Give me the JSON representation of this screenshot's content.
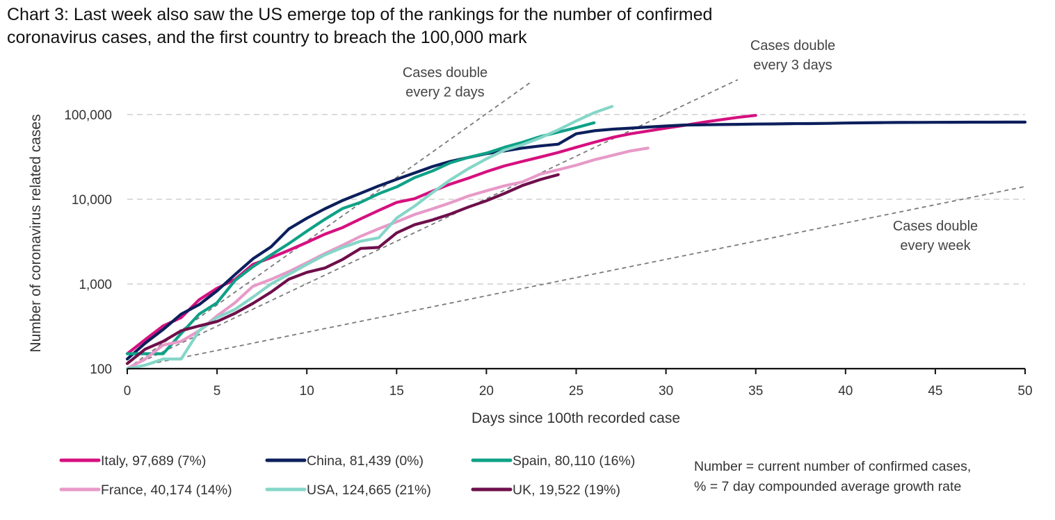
{
  "chart_data": {
    "type": "line",
    "title_lines": [
      "Chart 3: Last week also saw the US emerge top of the rankings for the number of confirmed",
      "coronavirus cases, and the first country to breach the 100,000 mark"
    ],
    "xlabel": "Days since 100th recorded case",
    "ylabel": "Number of coronavirus related cases",
    "y_scale": "log",
    "xlim": [
      0,
      50
    ],
    "ylim": [
      100,
      250000
    ],
    "x_ticks": [
      0,
      5,
      10,
      15,
      20,
      25,
      30,
      35,
      40,
      45,
      50
    ],
    "x_tick_labels": [
      "0",
      "5",
      "10",
      "15",
      "20",
      "25",
      "30",
      "35",
      "40",
      "45",
      "50"
    ],
    "y_ticks": [
      100,
      1000,
      10000,
      100000
    ],
    "y_tick_labels": [
      "100",
      "1,000",
      "10,000",
      "100,000"
    ],
    "grid": "horizontal-dashed",
    "legend_position": "bottom",
    "note_lines": [
      "Number = current number of confirmed cases,",
      "% = 7 day compounded average growth rate"
    ],
    "reference_lines": [
      {
        "doubling_days": 2,
        "label_lines": [
          "Cases double",
          "every 2 days"
        ],
        "x_end": 22.5
      },
      {
        "doubling_days": 3,
        "label_lines": [
          "Cases double",
          "every 3 days"
        ],
        "x_end": 34
      },
      {
        "doubling_days": 7,
        "label_lines": [
          "Cases double",
          "every week"
        ],
        "x_end": 50
      }
    ],
    "series": [
      {
        "name": "Italy, 97,689 (7%)",
        "color": "#d6107f",
        "x": [
          0,
          1,
          2,
          3,
          4,
          5,
          6,
          7,
          8,
          9,
          10,
          11,
          12,
          13,
          14,
          15,
          16,
          17,
          18,
          19,
          20,
          21,
          22,
          23,
          24,
          25,
          26,
          27,
          28,
          29,
          30,
          31,
          32,
          33,
          34,
          35
        ],
        "y": [
          150,
          220,
          320,
          400,
          650,
          890,
          1130,
          1700,
          2040,
          2500,
          3090,
          3860,
          4640,
          5880,
          7380,
          9170,
          10150,
          12460,
          15110,
          17750,
          21160,
          24750,
          27980,
          31510,
          35710,
          41040,
          47020,
          53580,
          59140,
          63930,
          69180,
          74390,
          80590,
          86500,
          92470,
          97689
        ]
      },
      {
        "name": "China, 81,439 (0%)",
        "color": "#0c1f5c",
        "x": [
          0,
          1,
          2,
          3,
          4,
          5,
          6,
          7,
          8,
          9,
          10,
          11,
          12,
          13,
          14,
          15,
          16,
          17,
          18,
          19,
          20,
          21,
          22,
          23,
          24,
          25,
          26,
          27,
          28,
          29,
          30,
          31,
          32,
          33,
          34,
          35,
          36,
          37,
          38,
          39,
          40,
          41,
          42,
          43,
          44,
          45,
          46,
          47,
          48,
          49,
          50
        ],
        "y": [
          130,
          200,
          290,
          440,
          570,
          830,
          1290,
          1980,
          2740,
          4470,
          5970,
          7710,
          9690,
          11790,
          14380,
          17200,
          20440,
          24320,
          28020,
          31160,
          34540,
          37200,
          40170,
          42640,
          44650,
          59280,
          64280,
          67100,
          69030,
          71220,
          73250,
          75140,
          75560,
          76200,
          76680,
          77150,
          77560,
          78060,
          78170,
          78630,
          79400,
          79840,
          80290,
          80580,
          80810,
          81000,
          81100,
          81200,
          81300,
          81350,
          81439
        ]
      },
      {
        "name": "Spain, 80,110 (16%)",
        "color": "#0fa187",
        "x": [
          0,
          1,
          2,
          3,
          4,
          5,
          6,
          7,
          8,
          9,
          10,
          11,
          12,
          13,
          14,
          15,
          16,
          17,
          18,
          19,
          20,
          21,
          22,
          23,
          24,
          25,
          26
        ],
        "y": [
          150,
          150,
          150,
          260,
          440,
          600,
          1100,
          1600,
          2200,
          3000,
          4200,
          5800,
          7800,
          9200,
          11600,
          14000,
          18000,
          21600,
          27000,
          31200,
          35000,
          41000,
          47000,
          55000,
          62000,
          70000,
          80110
        ]
      },
      {
        "name": "France, 40,174 (14%)",
        "color": "#e79ac8",
        "x": [
          0,
          1,
          2,
          3,
          4,
          5,
          6,
          7,
          8,
          9,
          10,
          11,
          12,
          13,
          14,
          15,
          16,
          17,
          18,
          19,
          20,
          21,
          22,
          23,
          24,
          25,
          26,
          27,
          28,
          29
        ],
        "y": [
          100,
          130,
          190,
          210,
          280,
          420,
          600,
          940,
          1130,
          1400,
          1780,
          2280,
          2870,
          3660,
          4480,
          5400,
          6600,
          7700,
          9100,
          10900,
          12600,
          14400,
          16000,
          19800,
          22300,
          25200,
          29200,
          32900,
          37100,
          40174
        ]
      },
      {
        "name": "USA, 124,665 (21%)",
        "color": "#85d6c8",
        "x": [
          0,
          1,
          2,
          3,
          4,
          5,
          6,
          7,
          8,
          9,
          10,
          11,
          12,
          13,
          14,
          15,
          16,
          17,
          18,
          19,
          20,
          21,
          22,
          23,
          24,
          25,
          26,
          27
        ],
        "y": [
          100,
          110,
          130,
          130,
          280,
          400,
          500,
          700,
          1000,
          1300,
          1700,
          2200,
          2700,
          3200,
          3500,
          6000,
          8300,
          12000,
          17000,
          23000,
          30000,
          38000,
          44000,
          53000,
          66000,
          84000,
          105000,
          124665
        ]
      },
      {
        "name": "UK, 19,522 (19%)",
        "color": "#6e0f4b",
        "x": [
          0,
          1,
          2,
          3,
          4,
          5,
          6,
          7,
          8,
          9,
          10,
          11,
          12,
          13,
          14,
          15,
          16,
          17,
          18,
          19,
          20,
          21,
          22,
          23,
          24
        ],
        "y": [
          115,
          170,
          210,
          280,
          320,
          360,
          450,
          590,
          800,
          1140,
          1370,
          1540,
          1950,
          2630,
          2700,
          4000,
          5000,
          5700,
          6700,
          8100,
          9600,
          11700,
          14500,
          17100,
          19522
        ]
      }
    ]
  }
}
